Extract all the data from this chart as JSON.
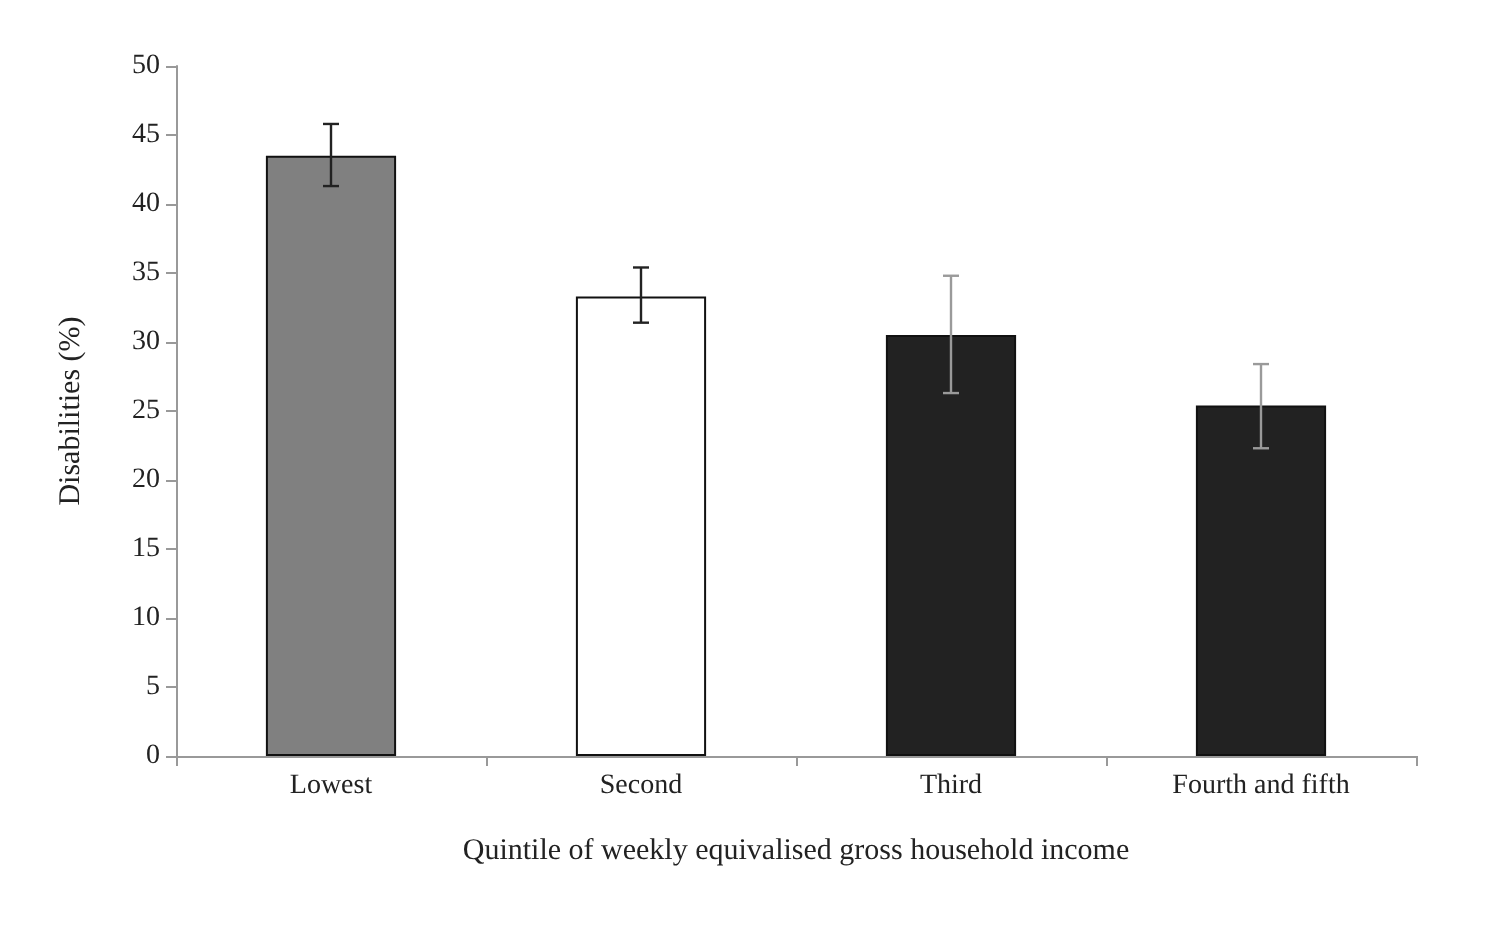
{
  "chart_data": {
    "type": "bar",
    "xlabel": "Quintile of weekly equivalised gross household income",
    "ylabel": "Disabilities (%)",
    "categories": [
      "Lowest",
      "Second",
      "Third",
      "Fourth and fifth"
    ],
    "values": [
      43.5,
      33.3,
      30.5,
      25.4
    ],
    "colors": [
      "#808080",
      "#ffffff",
      "#222222",
      "#222222"
    ],
    "errors": [
      [
        41.3,
        45.8
      ],
      [
        31.4,
        35.4
      ],
      [
        26.3,
        34.8
      ],
      [
        22.3,
        28.4
      ]
    ],
    "ylim": [
      0,
      50
    ],
    "yticks": [
      0,
      5,
      10,
      15,
      20,
      25,
      30,
      35,
      40,
      45,
      50
    ]
  }
}
